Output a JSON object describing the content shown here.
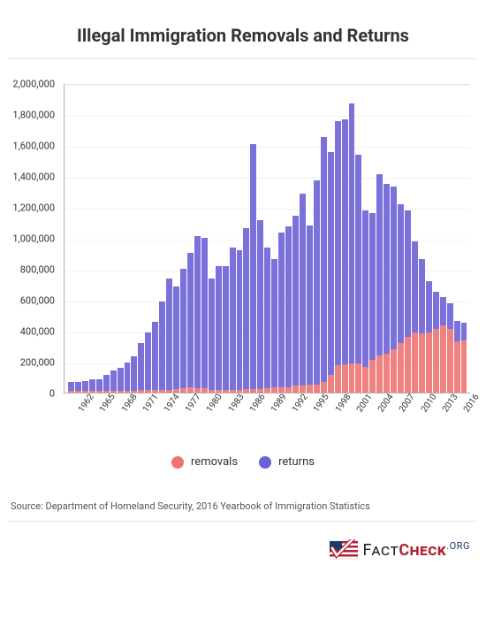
{
  "title": "Illegal Immigration Removals and Returns",
  "chart": {
    "type": "stacked-bar",
    "background_color": "#ffffff",
    "grid_color": "#f2f2f2",
    "axis_color": "#b0b0b0",
    "label_color": "#333333",
    "y_axis": {
      "min": 0,
      "max": 2000000,
      "step": 200000,
      "labels": [
        "0",
        "200,000",
        "400,000",
        "600,000",
        "800,000",
        "1,000,000",
        "1,200,000",
        "1,400,000",
        "1,600,000",
        "1,800,000",
        "2,000,000"
      ]
    },
    "x_tick_step": 3,
    "years": [
      1960,
      1961,
      1962,
      1963,
      1964,
      1965,
      1966,
      1967,
      1968,
      1969,
      1970,
      1971,
      1972,
      1973,
      1974,
      1975,
      1976,
      1977,
      1978,
      1979,
      1980,
      1981,
      1982,
      1983,
      1984,
      1985,
      1986,
      1987,
      1988,
      1989,
      1990,
      1991,
      1992,
      1993,
      1994,
      1995,
      1996,
      1997,
      1998,
      1999,
      2000,
      2001,
      2002,
      2003,
      2004,
      2005,
      2006,
      2007,
      2008,
      2009,
      2010,
      2011,
      2012,
      2013,
      2014,
      2015,
      2016
    ],
    "series": {
      "removals": {
        "label": "removals",
        "color": "#ed7373",
        "opacity": 0.9,
        "values": [
          10000,
          10000,
          10000,
          10000,
          10000,
          12000,
          12000,
          12000,
          12000,
          13000,
          18000,
          18000,
          18000,
          18000,
          19000,
          25000,
          30000,
          32000,
          30000,
          28000,
          20000,
          18000,
          16000,
          20000,
          20000,
          25000,
          25000,
          25000,
          26000,
          35000,
          32000,
          35000,
          45000,
          45000,
          50000,
          52000,
          70000,
          115000,
          175000,
          185000,
          190000,
          190000,
          165000,
          210000,
          240000,
          250000,
          280000,
          320000,
          360000,
          390000,
          385000,
          390000,
          410000,
          435000,
          410000,
          330000,
          340000
        ]
      },
      "returns": {
        "label": "returns",
        "color": "#6b62d6",
        "opacity": 0.9,
        "values": [
          60000,
          60000,
          65000,
          75000,
          75000,
          100000,
          130000,
          150000,
          180000,
          220000,
          300000,
          370000,
          440000,
          570000,
          720000,
          660000,
          770000,
          870000,
          980000,
          970000,
          720000,
          800000,
          800000,
          920000,
          900000,
          1040000,
          1580000,
          1090000,
          910000,
          830000,
          1000000,
          1040000,
          1100000,
          1240000,
          1030000,
          1320000,
          1580000,
          1440000,
          1580000,
          1580000,
          1680000,
          1350000,
          1010000,
          950000,
          1170000,
          1100000,
          1050000,
          900000,
          820000,
          590000,
          480000,
          330000,
          240000,
          180000,
          170000,
          135000,
          110000
        ]
      }
    }
  },
  "legend": {
    "items": [
      {
        "key": "removals",
        "label": "removals",
        "color": "#ed7373"
      },
      {
        "key": "returns",
        "label": "returns",
        "color": "#6b62d6"
      }
    ]
  },
  "source": "Source: Department of Homeland Security, 2016 Yearbook of Immigration Statistics",
  "logo": {
    "text_fact": "Fact",
    "text_check": "Check",
    "text_org": ".ORG",
    "flag_red": "#b22234",
    "flag_blue": "#1a3a6e",
    "flag_white": "#ffffff"
  }
}
